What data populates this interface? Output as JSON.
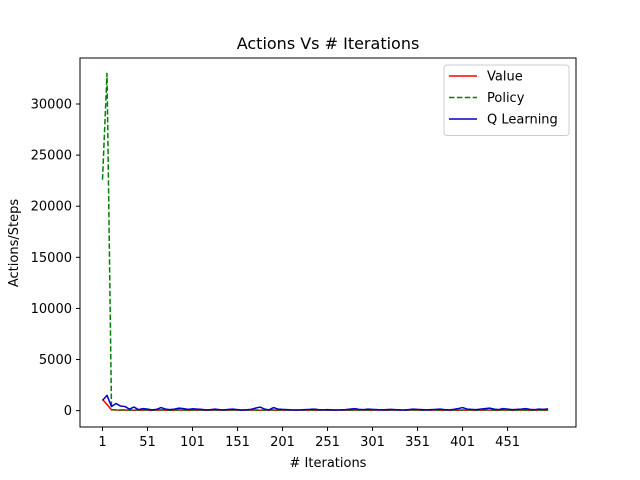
{
  "chart_data": {
    "type": "line",
    "title": "Actions Vs # Iterations",
    "xlabel": "# Iterations",
    "ylabel": "Actions/Steps",
    "xlim": [
      -24,
      527
    ],
    "ylim": [
      -1600,
      34500
    ],
    "xticks": [
      1,
      51,
      101,
      151,
      201,
      251,
      301,
      351,
      401,
      451
    ],
    "yticks": [
      0,
      5000,
      10000,
      15000,
      20000,
      25000,
      30000
    ],
    "grid": false,
    "legend_position": "top-right",
    "x": [
      1,
      6,
      11,
      16,
      21,
      26,
      31,
      36,
      41,
      46,
      51,
      56,
      61,
      66,
      71,
      76,
      81,
      86,
      91,
      96,
      101,
      106,
      111,
      116,
      121,
      126,
      131,
      136,
      141,
      146,
      151,
      156,
      161,
      166,
      171,
      176,
      181,
      186,
      191,
      196,
      201,
      206,
      211,
      216,
      221,
      226,
      231,
      236,
      241,
      246,
      251,
      256,
      261,
      266,
      271,
      276,
      281,
      286,
      291,
      296,
      301,
      306,
      311,
      316,
      321,
      326,
      331,
      336,
      341,
      346,
      351,
      356,
      361,
      366,
      371,
      376,
      381,
      386,
      391,
      396,
      401,
      406,
      411,
      416,
      421,
      426,
      431,
      436,
      441,
      446,
      451,
      456,
      461,
      466,
      471,
      476,
      481,
      486,
      491,
      496
    ],
    "series": [
      {
        "name": "Value",
        "color": "#ff0000",
        "dash": "solid",
        "values": [
          1100,
          600,
          80,
          60,
          50,
          60,
          50,
          40,
          50,
          60,
          50,
          40,
          50,
          60,
          50,
          40,
          50,
          60,
          50,
          40,
          50,
          60,
          50,
          40,
          50,
          60,
          50,
          40,
          50,
          60,
          50,
          40,
          50,
          60,
          50,
          40,
          50,
          60,
          50,
          40,
          50,
          60,
          50,
          40,
          50,
          60,
          50,
          40,
          50,
          60,
          50,
          40,
          50,
          60,
          50,
          40,
          50,
          60,
          50,
          40,
          50,
          60,
          50,
          40,
          50,
          60,
          50,
          40,
          50,
          60,
          50,
          40,
          50,
          60,
          50,
          40,
          50,
          60,
          50,
          40,
          50,
          60,
          50,
          40,
          50,
          60,
          50,
          40,
          50,
          60,
          50,
          40,
          50,
          60,
          50,
          40,
          50,
          60,
          50,
          40
        ]
      },
      {
        "name": "Policy",
        "color": "#008000",
        "dash": "dashed",
        "values": [
          22600,
          33000,
          100,
          80,
          60,
          70,
          50,
          60,
          60,
          70,
          60,
          50,
          60,
          70,
          60,
          50,
          60,
          70,
          60,
          50,
          60,
          70,
          60,
          50,
          60,
          70,
          60,
          50,
          60,
          70,
          60,
          50,
          60,
          70,
          60,
          50,
          60,
          70,
          60,
          50,
          60,
          70,
          60,
          50,
          60,
          70,
          60,
          50,
          60,
          70,
          60,
          50,
          60,
          70,
          60,
          50,
          60,
          70,
          60,
          50,
          60,
          70,
          60,
          50,
          60,
          70,
          60,
          50,
          60,
          70,
          60,
          50,
          60,
          70,
          60,
          50,
          60,
          70,
          60,
          50,
          60,
          70,
          60,
          50,
          60,
          70,
          60,
          50,
          60,
          70,
          60,
          50,
          60,
          70,
          60,
          50,
          60,
          70,
          60,
          50
        ]
      },
      {
        "name": "Q Learning",
        "color": "#0000cc",
        "dash": "solid",
        "values": [
          1000,
          1500,
          400,
          700,
          450,
          400,
          150,
          350,
          100,
          200,
          150,
          80,
          120,
          300,
          150,
          100,
          150,
          250,
          200,
          120,
          180,
          150,
          120,
          80,
          100,
          150,
          100,
          80,
          120,
          150,
          100,
          60,
          90,
          130,
          250,
          350,
          150,
          80,
          300,
          150,
          120,
          100,
          80,
          60,
          80,
          100,
          120,
          150,
          100,
          80,
          100,
          80,
          60,
          80,
          100,
          150,
          200,
          120,
          100,
          150,
          120,
          100,
          80,
          100,
          120,
          100,
          80,
          60,
          100,
          150,
          120,
          100,
          80,
          100,
          120,
          150,
          100,
          80,
          120,
          200,
          300,
          150,
          120,
          100,
          150,
          200,
          250,
          150,
          100,
          200,
          150,
          100,
          120,
          150,
          200,
          120,
          100,
          150,
          120,
          180
        ]
      }
    ]
  }
}
